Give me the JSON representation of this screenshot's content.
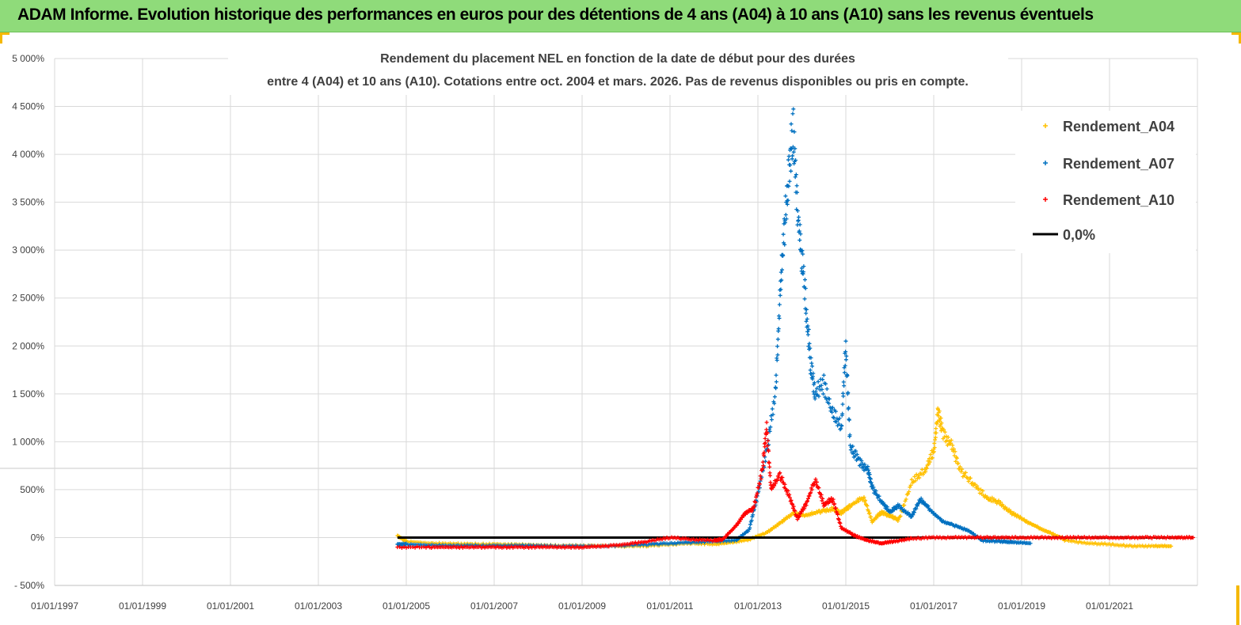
{
  "banner": {
    "title": "ADAM Informe. Evolution historique des performances en euros pour des détentions de 4 ans (A04) à 10 ans (A10) sans les revenus éventuels"
  },
  "colors": {
    "banner": "#8fdb7a",
    "a04": "#ffc000",
    "a07": "#0070c0",
    "a10": "#ff0000",
    "zero": "#000000",
    "corner": "#f5b800"
  },
  "chart_data": {
    "type": "scatter",
    "title_line1": "Rendement du placement NEL en fonction de la date de début pour des durées",
    "title_line2": "entre 4 (A04) et 10 ans (A10). Cotations entre oct. 2004 et mars. 2026. Pas de revenus disponibles ou pris  en compte.",
    "xlabel": "",
    "ylabel": "",
    "xlim": [
      1997.0,
      2023.0
    ],
    "ylim": [
      -500,
      5000
    ],
    "grid": true,
    "legend_position": "top-right",
    "x_ticks": [
      "01/01/1997",
      "01/01/1999",
      "01/01/2001",
      "01/01/2003",
      "01/01/2005",
      "01/01/2007",
      "01/01/2009",
      "01/01/2011",
      "01/01/2013",
      "01/01/2015",
      "01/01/2017",
      "01/01/2019",
      "01/01/2021"
    ],
    "y_ticks": [
      "- 500%",
      "0%",
      "500%",
      "1 000%",
      "1 500%",
      "2 000%",
      "2 500%",
      "3 000%",
      "3 500%",
      "4 000%",
      "4 500%",
      "5 000%"
    ],
    "y_tick_values": [
      -500,
      0,
      500,
      1000,
      1500,
      2000,
      2500,
      3000,
      3500,
      4000,
      4500,
      5000
    ],
    "series": [
      {
        "name": "Rendement_A04",
        "marker": "+",
        "color": "#ffc000",
        "points": [
          [
            2004.8,
            20
          ],
          [
            2005.0,
            -40
          ],
          [
            2005.5,
            -60
          ],
          [
            2006.0,
            -65
          ],
          [
            2006.5,
            -70
          ],
          [
            2007.0,
            -70
          ],
          [
            2007.5,
            -75
          ],
          [
            2008.0,
            -80
          ],
          [
            2008.5,
            -85
          ],
          [
            2009.0,
            -85
          ],
          [
            2009.5,
            -85
          ],
          [
            2010.0,
            -90
          ],
          [
            2010.5,
            -85
          ],
          [
            2011.0,
            -70
          ],
          [
            2011.5,
            -60
          ],
          [
            2012.0,
            -70
          ],
          [
            2012.4,
            -50
          ],
          [
            2012.8,
            -20
          ],
          [
            2013.2,
            50
          ],
          [
            2013.5,
            150
          ],
          [
            2013.8,
            250
          ],
          [
            2014.1,
            230
          ],
          [
            2014.4,
            270
          ],
          [
            2014.7,
            300
          ],
          [
            2014.9,
            260
          ],
          [
            2015.1,
            330
          ],
          [
            2015.4,
            420
          ],
          [
            2015.6,
            170
          ],
          [
            2015.8,
            260
          ],
          [
            2016.0,
            230
          ],
          [
            2016.2,
            180
          ],
          [
            2016.5,
            580
          ],
          [
            2016.8,
            700
          ],
          [
            2017.0,
            900
          ],
          [
            2017.1,
            1320
          ],
          [
            2017.2,
            1100
          ],
          [
            2017.4,
            960
          ],
          [
            2017.6,
            700
          ],
          [
            2017.9,
            560
          ],
          [
            2018.2,
            420
          ],
          [
            2018.5,
            360
          ],
          [
            2018.8,
            250
          ],
          [
            2019.1,
            170
          ],
          [
            2019.4,
            100
          ],
          [
            2019.7,
            40
          ],
          [
            2020.0,
            -30
          ],
          [
            2020.5,
            -60
          ],
          [
            2021.0,
            -70
          ],
          [
            2021.5,
            -90
          ],
          [
            2022.0,
            -90
          ],
          [
            2022.4,
            -90
          ]
        ]
      },
      {
        "name": "Rendement_A07",
        "marker": "+",
        "color": "#0070c0",
        "points": [
          [
            2004.8,
            -70
          ],
          [
            2005.0,
            -70
          ],
          [
            2005.5,
            -80
          ],
          [
            2006.0,
            -85
          ],
          [
            2006.5,
            -85
          ],
          [
            2007.0,
            -85
          ],
          [
            2007.5,
            -85
          ],
          [
            2008.0,
            -85
          ],
          [
            2008.5,
            -90
          ],
          [
            2009.0,
            -90
          ],
          [
            2009.5,
            -90
          ],
          [
            2010.0,
            -80
          ],
          [
            2010.5,
            -70
          ],
          [
            2011.0,
            -60
          ],
          [
            2011.5,
            -50
          ],
          [
            2012.0,
            -40
          ],
          [
            2012.5,
            -30
          ],
          [
            2012.8,
            80
          ],
          [
            2013.0,
            450
          ],
          [
            2013.2,
            900
          ],
          [
            2013.4,
            1500
          ],
          [
            2013.5,
            2500
          ],
          [
            2013.6,
            3200
          ],
          [
            2013.7,
            3800
          ],
          [
            2013.8,
            4300
          ],
          [
            2013.9,
            3400
          ],
          [
            2014.0,
            2900
          ],
          [
            2014.1,
            2400
          ],
          [
            2014.2,
            1800
          ],
          [
            2014.3,
            1500
          ],
          [
            2014.5,
            1600
          ],
          [
            2014.7,
            1300
          ],
          [
            2014.9,
            1150
          ],
          [
            2015.0,
            2000
          ],
          [
            2015.1,
            950
          ],
          [
            2015.3,
            800
          ],
          [
            2015.5,
            700
          ],
          [
            2015.6,
            520
          ],
          [
            2015.8,
            380
          ],
          [
            2016.0,
            270
          ],
          [
            2016.2,
            330
          ],
          [
            2016.5,
            220
          ],
          [
            2016.7,
            400
          ],
          [
            2016.9,
            300
          ],
          [
            2017.2,
            170
          ],
          [
            2017.5,
            120
          ],
          [
            2017.8,
            70
          ],
          [
            2018.1,
            -30
          ],
          [
            2018.5,
            -40
          ],
          [
            2018.8,
            -50
          ],
          [
            2019.2,
            -60
          ]
        ]
      },
      {
        "name": "Rendement_A10",
        "marker": "+",
        "color": "#ff0000",
        "points": [
          [
            2004.8,
            -100
          ],
          [
            2005.5,
            -100
          ],
          [
            2006.0,
            -100
          ],
          [
            2006.5,
            -100
          ],
          [
            2007.0,
            -100
          ],
          [
            2007.5,
            -100
          ],
          [
            2008.0,
            -100
          ],
          [
            2008.5,
            -100
          ],
          [
            2009.0,
            -100
          ],
          [
            2009.5,
            -90
          ],
          [
            2010.0,
            -70
          ],
          [
            2010.5,
            -40
          ],
          [
            2011.0,
            0
          ],
          [
            2011.5,
            -20
          ],
          [
            2012.0,
            -30
          ],
          [
            2012.2,
            -20
          ],
          [
            2012.5,
            120
          ],
          [
            2012.7,
            250
          ],
          [
            2012.9,
            300
          ],
          [
            2013.1,
            700
          ],
          [
            2013.2,
            1150
          ],
          [
            2013.3,
            500
          ],
          [
            2013.5,
            650
          ],
          [
            2013.7,
            450
          ],
          [
            2013.9,
            200
          ],
          [
            2014.1,
            350
          ],
          [
            2014.3,
            600
          ],
          [
            2014.5,
            350
          ],
          [
            2014.7,
            400
          ],
          [
            2014.9,
            100
          ],
          [
            2015.2,
            20
          ],
          [
            2015.5,
            -30
          ],
          [
            2015.8,
            -60
          ],
          [
            2016.1,
            -40
          ],
          [
            2016.5,
            -10
          ],
          [
            2017.0,
            0
          ],
          [
            2017.5,
            0
          ],
          [
            2018.0,
            0
          ],
          [
            2018.5,
            0
          ],
          [
            2019.0,
            0
          ],
          [
            2019.5,
            0
          ],
          [
            2020.0,
            0
          ],
          [
            2020.5,
            0
          ],
          [
            2021.0,
            0
          ],
          [
            2021.5,
            0
          ],
          [
            2022.0,
            0
          ],
          [
            2022.5,
            0
          ],
          [
            2022.9,
            0
          ]
        ]
      },
      {
        "name": "0,0%",
        "marker": "line",
        "color": "#000000",
        "points": [
          [
            2004.8,
            0
          ],
          [
            2022.9,
            0
          ]
        ]
      }
    ]
  }
}
